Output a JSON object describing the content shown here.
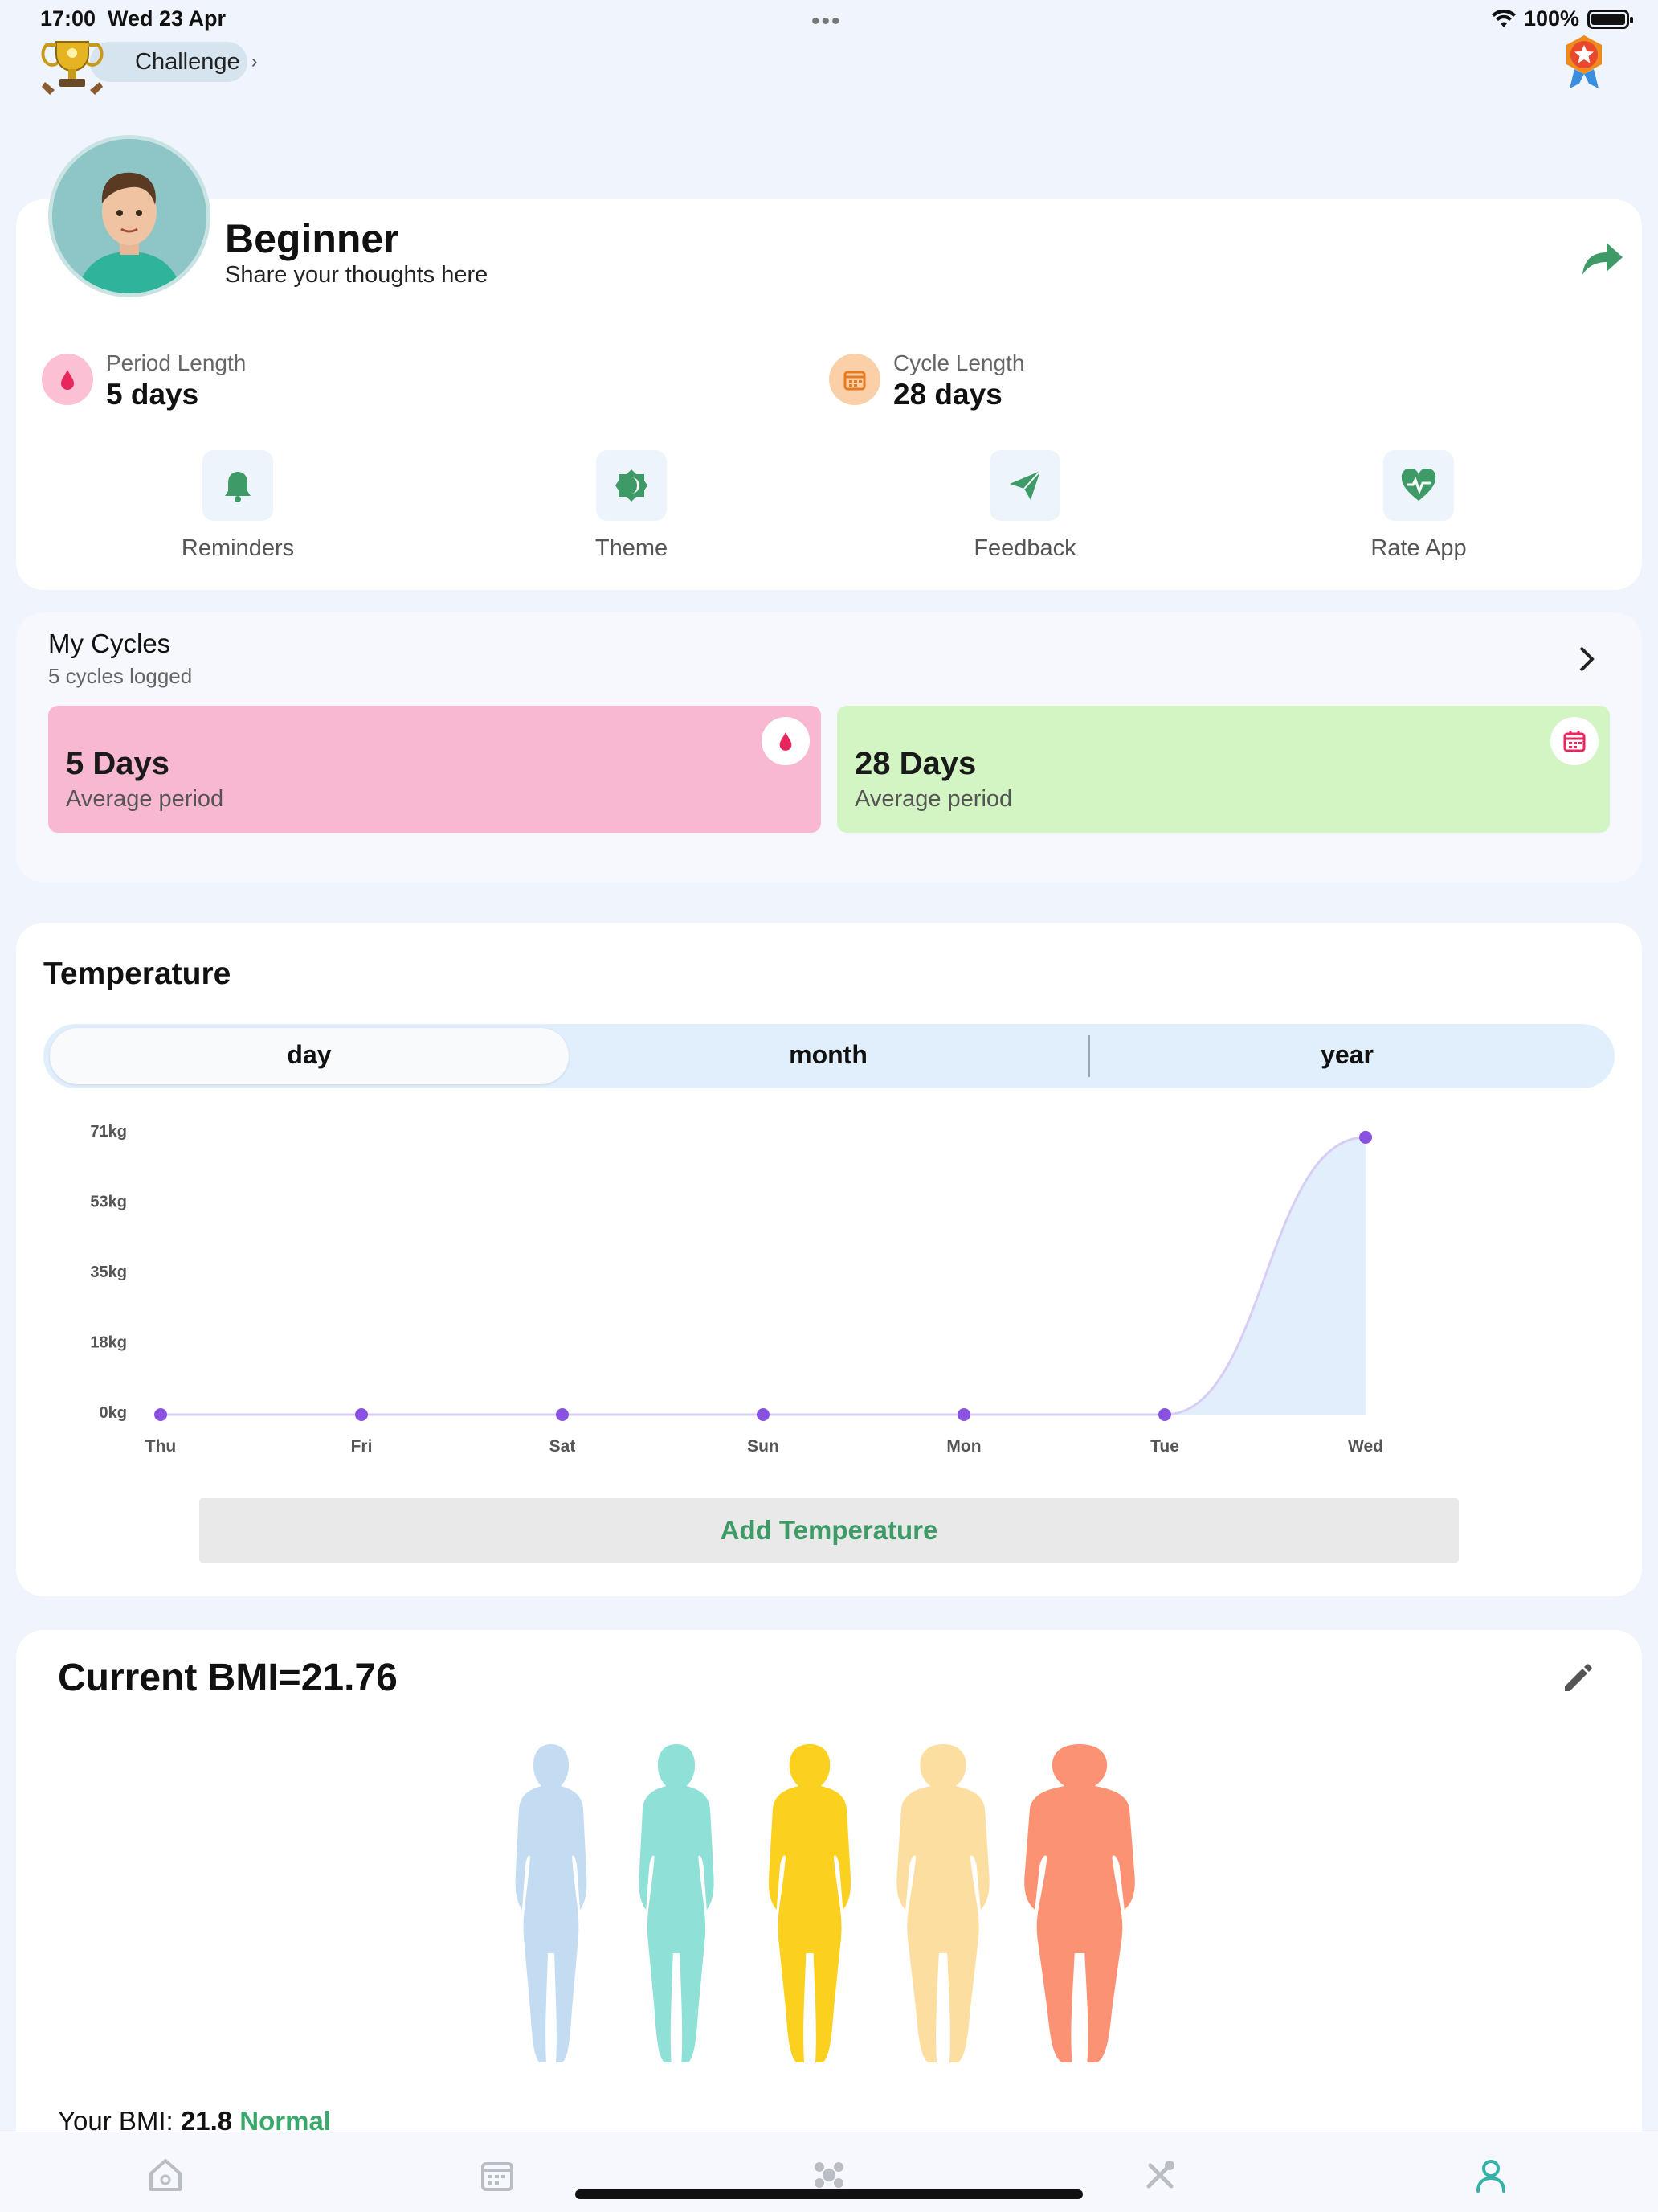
{
  "status_bar": {
    "time": "17:00",
    "date": "Wed 23 Apr",
    "battery": "100%"
  },
  "header": {
    "challenge_label": "Challenge"
  },
  "profile": {
    "level": "Beginner",
    "prompt": "Share your thoughts here",
    "period_length_label": "Period Length",
    "period_length_value": "5 days",
    "cycle_length_label": "Cycle Length",
    "cycle_length_value": "28 days",
    "actions": [
      {
        "label": "Reminders",
        "icon": "bell-icon"
      },
      {
        "label": "Theme",
        "icon": "theme-icon"
      },
      {
        "label": "Feedback",
        "icon": "paper-plane-icon"
      },
      {
        "label": "Rate App",
        "icon": "heart-pulse-icon"
      }
    ]
  },
  "cycles": {
    "title": "My Cycles",
    "subtitle": "5 cycles logged",
    "tiles": [
      {
        "value": "5 Days",
        "label": "Average period",
        "color": "#f9b8d1",
        "icon": "drop-icon"
      },
      {
        "value": "28 Days",
        "label": "Average period",
        "color": "#d2f5c3",
        "icon": "calendar-icon"
      }
    ]
  },
  "temperature": {
    "title": "Temperature",
    "segments": [
      "day",
      "month",
      "year"
    ],
    "selected_segment": "day",
    "add_button": "Add Temperature"
  },
  "chart_data": {
    "type": "area",
    "categories": [
      "Thu",
      "Fri",
      "Sat",
      "Sun",
      "Mon",
      "Tue",
      "Wed"
    ],
    "values": [
      0,
      0,
      0,
      0,
      0,
      0,
      70
    ],
    "y_ticks": [
      "0kg",
      "18kg",
      "35kg",
      "53kg",
      "71kg"
    ],
    "ylim": [
      0,
      71
    ],
    "grid": false,
    "line_color": "#d7cdf5",
    "point_color": "#8a52e0",
    "fill_color": "#e3eefc"
  },
  "bmi": {
    "title": "Current BMI=21.76",
    "your_bmi_label": "Your BMI:",
    "your_bmi_value": "21.8",
    "status": "Normal",
    "figure_colors": [
      "#c4dcf2",
      "#8fe0d6",
      "#fcd01f",
      "#fcdea0",
      "#fc9274"
    ]
  },
  "tabbar": {
    "icons": [
      "home-icon",
      "calendar-icon",
      "flower-icon",
      "tools-icon",
      "profile-icon"
    ],
    "active": "profile-icon"
  }
}
